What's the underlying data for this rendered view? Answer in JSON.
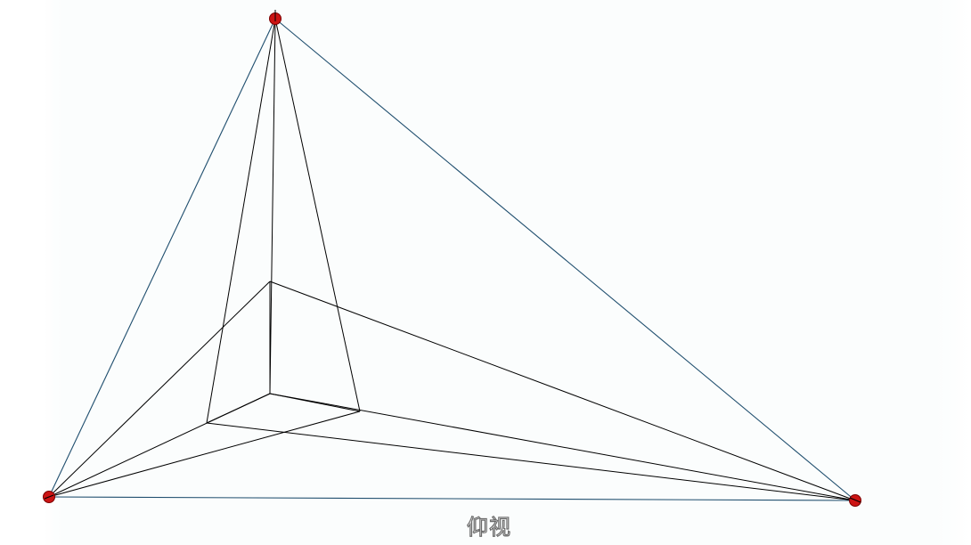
{
  "caption": "仰视",
  "colors": {
    "background": "#fbfdfd",
    "frame_line": "#1f4e6e",
    "construction_line": "#000000",
    "vanishing_point_fill": "#cc1414",
    "vanishing_point_stroke": "#7a0000"
  },
  "vanishing_points": [
    "top",
    "left",
    "right"
  ]
}
